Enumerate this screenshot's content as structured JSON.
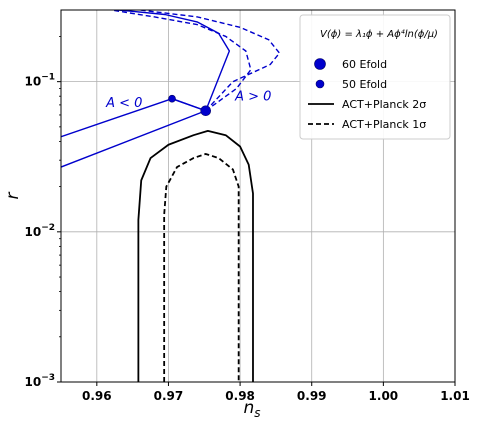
{
  "chart_data": {
    "type": "line",
    "xlabel": "n_s",
    "ylabel": "r",
    "xlim": [
      0.955,
      1.01
    ],
    "ylim": [
      0.001,
      0.3
    ],
    "yscale": "log",
    "grid": true,
    "x_ticks": [
      0.96,
      0.97,
      0.98,
      0.99,
      1.0,
      1.01
    ],
    "x_tick_labels": [
      "0.96",
      "0.97",
      "0.98",
      "0.99",
      "1.00",
      "1.01"
    ],
    "y_ticks": [
      0.001,
      0.01,
      0.1
    ],
    "y_tick_labels": [
      {
        "base": "10",
        "exp": "−3"
      },
      {
        "base": "10",
        "exp": "−2"
      },
      {
        "base": "10",
        "exp": "−1"
      }
    ],
    "legend": {
      "placement": "top-right",
      "title": "V(ϕ) = λ₁ϕ + Aϕ⁴ln(ϕ/μ)",
      "entries": [
        {
          "label": "60 Efold",
          "marker": "large-circle"
        },
        {
          "label": "50 Efold",
          "marker": "small-circle"
        },
        {
          "label": "ACT+Planck 2σ",
          "line": "solid"
        },
        {
          "label": "ACT+Planck 1σ",
          "line": "dashed"
        }
      ]
    },
    "annotations": [
      {
        "text": "A < 0",
        "x": 0.9613,
        "y": 0.068,
        "color": "#0000cc"
      },
      {
        "text": "A > 0",
        "x": 0.9793,
        "y": 0.075,
        "color": "#0000cc"
      }
    ],
    "series": [
      {
        "style": "solid",
        "color": "#0000cc",
        "points": [
          [
            0.955,
            0.043
          ],
          [
            0.9705,
            0.077
          ]
        ]
      },
      {
        "style": "solid",
        "color": "#0000cc",
        "points": [
          [
            0.955,
            0.027
          ],
          [
            0.9752,
            0.064
          ]
        ]
      },
      {
        "style": "solid",
        "color": "#0000cc",
        "points": [
          [
            0.9705,
            0.077
          ],
          [
            0.9752,
            0.064
          ]
        ]
      },
      {
        "style": "solid",
        "color": "#0000cc",
        "points": [
          [
            0.9705,
            0.077
          ],
          [
            0.9752,
            0.064
          ],
          [
            0.9785,
            0.16
          ],
          [
            0.977,
            0.21
          ],
          [
            0.974,
            0.25
          ],
          [
            0.9695,
            0.28
          ],
          [
            0.963,
            0.3
          ]
        ]
      },
      {
        "style": "dashed",
        "color": "#0000cc",
        "points": [
          [
            0.9752,
            0.064
          ],
          [
            0.9795,
            0.09
          ],
          [
            0.9815,
            0.12
          ],
          [
            0.9808,
            0.16
          ],
          [
            0.978,
            0.2
          ],
          [
            0.974,
            0.24
          ],
          [
            0.968,
            0.27
          ],
          [
            0.962,
            0.3
          ]
        ]
      },
      {
        "style": "dashed",
        "color": "#0000cc",
        "points": [
          [
            0.9752,
            0.064
          ],
          [
            0.979,
            0.1
          ],
          [
            0.9842,
            0.13
          ],
          [
            0.9855,
            0.155
          ],
          [
            0.984,
            0.19
          ],
          [
            0.98,
            0.23
          ],
          [
            0.974,
            0.27
          ],
          [
            0.966,
            0.3
          ]
        ]
      },
      {
        "style": "solid",
        "color": "#000000",
        "points": [
          [
            0.9658,
            0.001
          ],
          [
            0.9658,
            0.012
          ],
          [
            0.9662,
            0.022
          ],
          [
            0.9675,
            0.031
          ],
          [
            0.97,
            0.038
          ],
          [
            0.9735,
            0.044
          ],
          [
            0.9755,
            0.047
          ],
          [
            0.978,
            0.044
          ],
          [
            0.98,
            0.037
          ],
          [
            0.9812,
            0.028
          ],
          [
            0.9818,
            0.018
          ],
          [
            0.9818,
            0.001
          ]
        ]
      },
      {
        "style": "dashed",
        "color": "#000000",
        "points": [
          [
            0.9694,
            0.001
          ],
          [
            0.9694,
            0.013
          ],
          [
            0.9697,
            0.02
          ],
          [
            0.9712,
            0.027
          ],
          [
            0.9735,
            0.031
          ],
          [
            0.9752,
            0.033
          ],
          [
            0.977,
            0.031
          ],
          [
            0.979,
            0.026
          ],
          [
            0.9798,
            0.02
          ],
          [
            0.9798,
            0.013
          ],
          [
            0.9798,
            0.001
          ]
        ]
      }
    ],
    "markers": [
      {
        "x": 0.9752,
        "y": 0.064,
        "size": "large",
        "color": "#0000cc"
      },
      {
        "x": 0.9705,
        "y": 0.077,
        "size": "small",
        "color": "#0000cc"
      }
    ]
  }
}
